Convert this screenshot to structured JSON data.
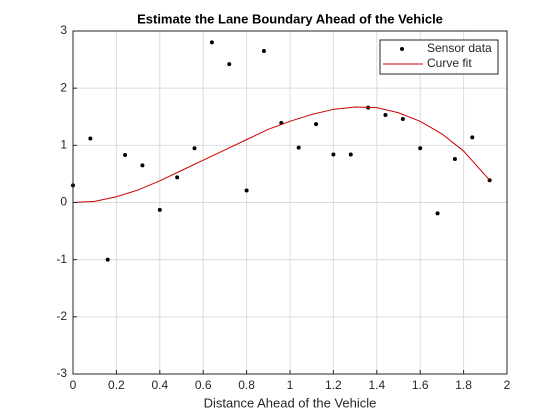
{
  "chart_data": {
    "type": "scatter",
    "title": "Estimate the Lane Boundary Ahead of the Vehicle",
    "x_label": "Distance Ahead of the Vehicle",
    "xlim": [
      0,
      2
    ],
    "xticks": [
      0,
      0.2,
      0.4,
      0.6,
      0.8,
      1,
      1.2,
      1.4,
      1.6,
      1.8,
      2
    ],
    "ylim": [
      -3,
      3
    ],
    "yticks": [
      -3,
      -2,
      -1,
      0,
      1,
      2,
      3
    ],
    "grid": true,
    "legend": "northeast",
    "series": [
      {
        "name": "Sensor data",
        "color": "#000000",
        "style": "marker",
        "x": [
          0,
          0.08,
          0.16,
          0.24,
          0.32,
          0.4,
          0.48,
          0.56,
          0.64,
          0.72,
          0.8,
          0.88,
          0.96,
          1.04,
          1.12,
          1.2,
          1.28,
          1.36,
          1.44,
          1.52,
          1.6,
          1.68,
          1.76,
          1.84,
          1.92
        ],
        "values": [
          0.3,
          1.12,
          -1.0,
          0.83,
          0.65,
          -0.13,
          0.44,
          0.95,
          2.8,
          2.42,
          0.21,
          2.65,
          1.39,
          0.96,
          1.37,
          0.84,
          0.84,
          1.66,
          1.53,
          1.46,
          0.95,
          -0.19,
          0.76,
          1.14,
          0.39
        ]
      },
      {
        "name": "Curve fit",
        "color": "#cc0000",
        "style": "line",
        "x": [
          0,
          0.1,
          0.2,
          0.3,
          0.4,
          0.5,
          0.6,
          0.7,
          0.8,
          0.9,
          1,
          1.1,
          1.2,
          1.3,
          1.4,
          1.5,
          1.6,
          1.7,
          1.8,
          1.92
        ],
        "values": [
          0,
          0.02,
          0.1,
          0.22,
          0.38,
          0.56,
          0.74,
          0.92,
          1.1,
          1.28,
          1.42,
          1.54,
          1.63,
          1.67,
          1.66,
          1.57,
          1.42,
          1.2,
          0.9,
          0.39
        ]
      }
    ]
  }
}
